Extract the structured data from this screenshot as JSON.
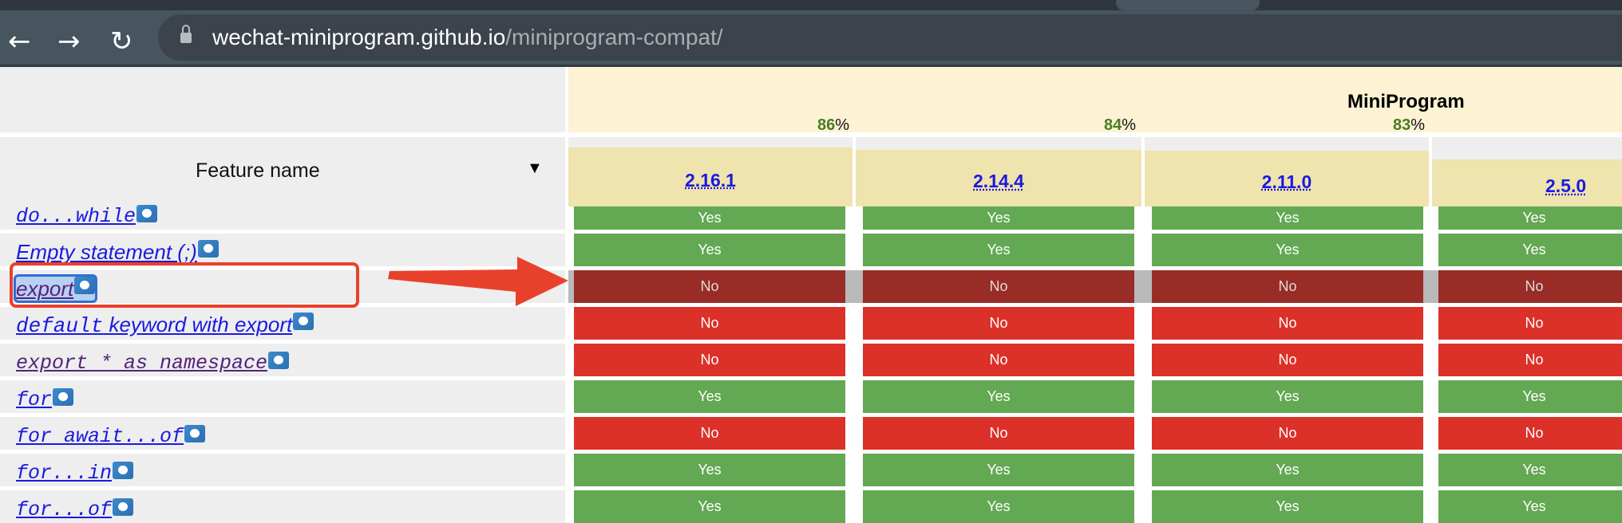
{
  "browser": {
    "url_host": "wechat-miniprogram.github.io",
    "url_path": "/miniprogram-compat/",
    "back_icon": "arrow-left",
    "forward_icon": "arrow-right",
    "reload_icon": "reload",
    "lock_icon": "lock"
  },
  "table": {
    "feature_header": "Feature name",
    "sort_indicator": "▼",
    "group_title": "MiniProgram",
    "versions": [
      {
        "label": "2.16.1",
        "percent": "86",
        "percent_sign": "%"
      },
      {
        "label": "2.14.4",
        "percent": "84",
        "percent_sign": "%"
      },
      {
        "label": "2.11.0",
        "percent": "83",
        "percent_sign": "%"
      },
      {
        "label": "2.5.0"
      }
    ],
    "rows": [
      {
        "feature": "do...while",
        "values": [
          "Yes",
          "Yes",
          "Yes",
          "Yes"
        ]
      },
      {
        "feature": "Empty statement (;)",
        "values": [
          "Yes",
          "Yes",
          "Yes",
          "Yes"
        ]
      },
      {
        "feature": "export",
        "values": [
          "No",
          "No",
          "No",
          "No"
        ],
        "highlighted": true
      },
      {
        "feature_mono": "default",
        "feature": " keyword with export",
        "values": [
          "No",
          "No",
          "No",
          "No"
        ]
      },
      {
        "feature": "export * as namespace",
        "values": [
          "No",
          "No",
          "No",
          "No"
        ]
      },
      {
        "feature": "for",
        "values": [
          "Yes",
          "Yes",
          "Yes",
          "Yes"
        ]
      },
      {
        "feature": "for await...of",
        "values": [
          "No",
          "No",
          "No",
          "No"
        ]
      },
      {
        "feature": "for...in",
        "values": [
          "Yes",
          "Yes",
          "Yes",
          "Yes"
        ]
      },
      {
        "feature": "for...of",
        "values": [
          "Yes",
          "Yes",
          "Yes",
          "Yes"
        ]
      }
    ]
  },
  "colors": {
    "yes": "#63a852",
    "no": "#dc3129",
    "selected_no": "#992c26",
    "annotation": "#e8412b",
    "header": "#fdf2d3",
    "version_cell": "#efe3ae"
  }
}
